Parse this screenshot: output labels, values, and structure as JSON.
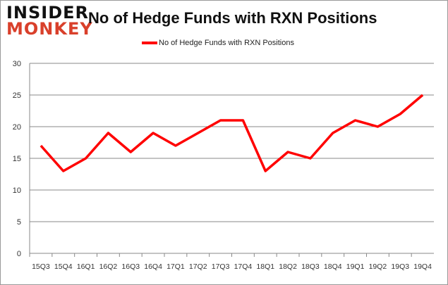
{
  "logo": {
    "line1": "INSIDER",
    "line2": "MONKEY"
  },
  "chart_data": {
    "type": "line",
    "title": "No of Hedge Funds with RXN Positions",
    "xlabel": "",
    "ylabel": "",
    "categories": [
      "15Q3",
      "15Q4",
      "16Q1",
      "16Q2",
      "16Q3",
      "16Q4",
      "17Q1",
      "17Q2",
      "17Q3",
      "17Q4",
      "18Q1",
      "18Q2",
      "18Q3",
      "18Q4",
      "19Q1",
      "19Q2",
      "19Q3",
      "19Q4"
    ],
    "series": [
      {
        "name": "No of Hedge Funds with RXN Positions",
        "color": "#ff0000",
        "values": [
          17,
          13,
          15,
          19,
          16,
          19,
          17,
          19,
          21,
          21,
          13,
          16,
          15,
          19,
          21,
          20,
          22,
          25
        ]
      }
    ],
    "ylim": [
      0,
      30
    ],
    "yticks": [
      0,
      5,
      10,
      15,
      20,
      25,
      30
    ],
    "grid": true,
    "legend": "top"
  }
}
